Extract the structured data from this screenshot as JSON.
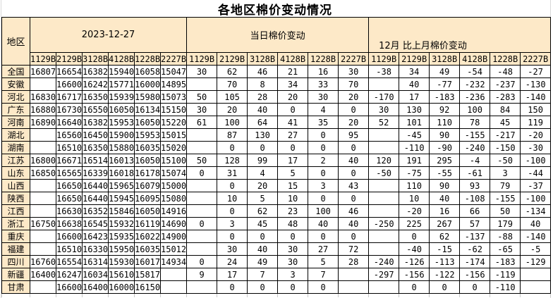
{
  "title": "各地区棉价变动情况",
  "colors": {
    "header_bg": "#FDE9C8",
    "positive": "#FF0000",
    "negative": "#1B7FC9"
  },
  "table": {
    "region_header": "地区",
    "groups": [
      {
        "label": "2023-12-27",
        "columns": [
          "1129B",
          "2129B",
          "3128B",
          "4128B",
          "1228B",
          "2227B"
        ]
      },
      {
        "label": "当日棉价变动",
        "columns": [
          "1129B",
          "2129B",
          "3128B",
          "4128B",
          "1228B",
          "2227B"
        ]
      },
      {
        "label": "12月 比上月棉价变动",
        "columns": [
          "1129B",
          "2129B",
          "3128B",
          "4128B",
          "1228B",
          "2227B"
        ]
      }
    ],
    "rows": [
      {
        "region": "全国",
        "prices": [
          "16807",
          "16654",
          "16382",
          "15940",
          "16058",
          "15047"
        ],
        "daily_change": [
          "30",
          "62",
          "46",
          "21",
          "16",
          "30"
        ],
        "monthly_change": [
          "-38",
          "34",
          "49",
          "-54",
          "-48",
          "-27"
        ]
      },
      {
        "region": "安徽",
        "prices": [
          "",
          "16600",
          "16242",
          "15771",
          "16000",
          "14895"
        ],
        "daily_change": [
          "",
          "70",
          "8",
          "34",
          "33",
          "70"
        ],
        "monthly_change": [
          "",
          "40",
          "-77",
          "-232",
          "-237",
          "-130"
        ]
      },
      {
        "region": "河北",
        "prices": [
          "16830",
          "16717",
          "16350",
          "15939",
          "15980",
          "15073"
        ],
        "daily_change": [
          "50",
          "105",
          "28",
          "20",
          "30",
          "20"
        ],
        "monthly_change": [
          "-170",
          "17",
          "-183",
          "-236",
          "-283",
          "-140"
        ]
      },
      {
        "region": "广东",
        "prices": [
          "16880",
          "16730",
          "16550",
          "16050",
          "16134",
          "15150"
        ],
        "daily_change": [
          "30",
          "20",
          "40",
          "0",
          "4",
          "0"
        ],
        "monthly_change": [
          "30",
          "130",
          "92",
          "100",
          "84",
          "150"
        ]
      },
      {
        "region": "河南",
        "prices": [
          "16890",
          "16640",
          "16382",
          "15953",
          "16050",
          "15220"
        ],
        "daily_change": [
          "61",
          "100",
          "64",
          "41",
          "35",
          "20"
        ],
        "monthly_change": [
          "52",
          "101",
          "110",
          "78",
          "45",
          "119"
        ]
      },
      {
        "region": "湖北",
        "prices": [
          "",
          "16560",
          "16450",
          "15900",
          "15953",
          "15015"
        ],
        "daily_change": [
          "",
          "87",
          "130",
          "27",
          "0",
          "95"
        ],
        "monthly_change": [
          "",
          "-45",
          "90",
          "-155",
          "-217",
          "-20"
        ]
      },
      {
        "region": "湖南",
        "prices": [
          "",
          "16510",
          "16350",
          "15880",
          "16035",
          "15020"
        ],
        "daily_change": [
          "",
          "0",
          "0",
          "0",
          "0",
          "0"
        ],
        "monthly_change": [
          "",
          "-110",
          "-90",
          "-240",
          "-150",
          "-30"
        ]
      },
      {
        "region": "江苏",
        "prices": [
          "16800",
          "16671",
          "16514",
          "16013",
          "16050",
          "15100"
        ],
        "daily_change": [
          "50",
          "128",
          "99",
          "17",
          "2",
          "40"
        ],
        "monthly_change": [
          "120",
          "191",
          "295",
          "-4",
          "-50",
          "-100"
        ]
      },
      {
        "region": "山东",
        "prices": [
          "16850",
          "16565",
          "16339",
          "16018",
          "16178",
          "15074"
        ],
        "daily_change": [
          "0",
          "31",
          "4",
          "5",
          "0",
          "0"
        ],
        "monthly_change": [
          "-50",
          "-75",
          "-55",
          "-61",
          "3",
          "-44"
        ]
      },
      {
        "region": "山西",
        "prices": [
          "",
          "16650",
          "16440",
          "15965",
          "16079",
          "15000"
        ],
        "daily_change": [
          "",
          "0",
          "20",
          "15",
          "3",
          "43"
        ],
        "monthly_change": [
          "",
          "110",
          "90",
          "93",
          "79",
          "-37"
        ]
      },
      {
        "region": "陕西",
        "prices": [
          "",
          "16650",
          "16440",
          "15945",
          "16095",
          "15080"
        ],
        "daily_change": [
          "",
          "10",
          "5",
          "10",
          "0",
          "0"
        ],
        "monthly_change": [
          "",
          "10",
          "40",
          "-108",
          "-155",
          "-100"
        ]
      },
      {
        "region": "江西",
        "prices": [
          "",
          "16630",
          "16352",
          "15846",
          "16050",
          "14916"
        ],
        "daily_change": [
          "",
          "0",
          "62",
          "23",
          "100",
          "46"
        ],
        "monthly_change": [
          "",
          "-20",
          "16",
          "66",
          "50",
          "-134"
        ]
      },
      {
        "region": "浙江",
        "prices": [
          "16750",
          "16638",
          "16545",
          "15932",
          "16119",
          "14690"
        ],
        "daily_change": [
          "0",
          "3",
          "45",
          "48",
          "40",
          "40"
        ],
        "monthly_change": [
          "-250",
          "225",
          "267",
          "57",
          "179",
          "40"
        ]
      },
      {
        "region": "重庆",
        "prices": [
          "",
          "16600",
          "16423",
          "15935",
          "16022",
          "14900"
        ],
        "daily_change": [
          "",
          "0",
          "0",
          "0",
          "0",
          "0"
        ],
        "monthly_change": [
          "",
          "0",
          "62",
          "-137",
          "-88",
          "-140"
        ]
      },
      {
        "region": "福建",
        "prices": [
          "",
          "16510",
          "16330",
          "15950",
          "16035",
          "15012"
        ],
        "daily_change": [
          "",
          "30",
          "40",
          "30",
          "27",
          "72"
        ],
        "monthly_change": [
          "",
          "-40",
          "-15",
          "-62",
          "-65",
          "-5"
        ]
      },
      {
        "region": "四川",
        "prices": [
          "16760",
          "16554",
          "16314",
          "15930",
          "16017",
          "14934"
        ],
        "daily_change": [
          "0",
          "24",
          "49",
          "30",
          "5",
          "28"
        ],
        "monthly_change": [
          "-240",
          "-126",
          "-113",
          "-174",
          "-183",
          "-129"
        ]
      },
      {
        "region": "新疆",
        "prices": [
          "16400",
          "16247",
          "16034",
          "15610",
          "15817",
          ""
        ],
        "daily_change": [
          "9",
          "17",
          "7",
          "3",
          "7",
          ""
        ],
        "monthly_change": [
          "-297",
          "-156",
          "-122",
          "-156",
          "-119",
          ""
        ]
      },
      {
        "region": "甘肃",
        "prices": [
          "",
          "16600",
          "16400",
          "16000",
          "16150",
          ""
        ],
        "daily_change": [
          "",
          "0",
          "0",
          "0",
          "0",
          ""
        ],
        "monthly_change": [
          "",
          "0",
          "0",
          "0",
          "-110",
          ""
        ]
      }
    ]
  }
}
